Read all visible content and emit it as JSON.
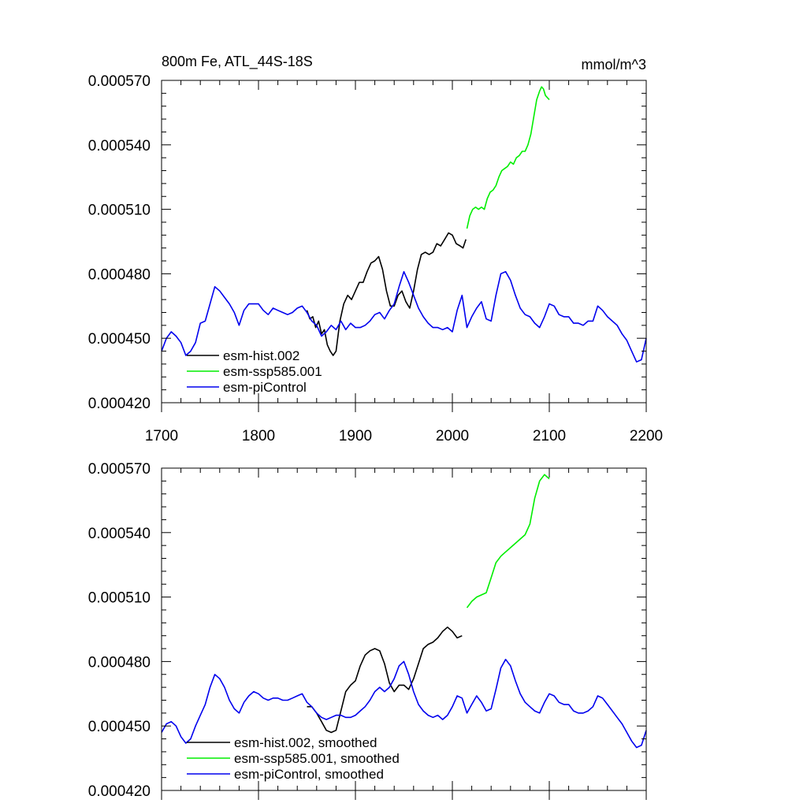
{
  "chart_data": [
    {
      "type": "line",
      "title": "800m Fe, ATL_44S-18S",
      "units": "mmol/m^3",
      "xlim": [
        1700,
        2200
      ],
      "ylim": [
        0.00042,
        0.00057
      ],
      "xticks": [
        "1700",
        "1800",
        "1900",
        "2000",
        "2100",
        "2200"
      ],
      "yticks": [
        "0.000420",
        "0.000450",
        "0.000480",
        "0.000510",
        "0.000540",
        "0.000570"
      ],
      "legend_position": "bottom-left",
      "series": [
        {
          "name": "esm-hist.002",
          "color": "#000000",
          "x": [
            1850,
            1853,
            1856,
            1859,
            1862,
            1865,
            1868,
            1871,
            1874,
            1877,
            1880,
            1884,
            1888,
            1892,
            1896,
            1900,
            1904,
            1908,
            1912,
            1916,
            1920,
            1924,
            1928,
            1932,
            1936,
            1940,
            1944,
            1948,
            1952,
            1956,
            1960,
            1964,
            1968,
            1972,
            1976,
            1980,
            1984,
            1988,
            1992,
            1996,
            2000,
            2004,
            2008,
            2011,
            2014
          ],
          "y": [
            0.000463,
            0.000459,
            0.00046,
            0.000455,
            0.000458,
            0.000452,
            0.000454,
            0.000447,
            0.000444,
            0.000442,
            0.000444,
            0.000458,
            0.000466,
            0.00047,
            0.000468,
            0.000472,
            0.000476,
            0.000476,
            0.000481,
            0.000485,
            0.000486,
            0.000488,
            0.000482,
            0.000472,
            0.000465,
            0.000465,
            0.00047,
            0.000472,
            0.000467,
            0.000464,
            0.000472,
            0.000482,
            0.000489,
            0.00049,
            0.000489,
            0.00049,
            0.000494,
            0.000493,
            0.000496,
            0.000499,
            0.000498,
            0.000494,
            0.000493,
            0.000492,
            0.000496
          ]
        },
        {
          "name": "esm-ssp585.001",
          "color": "#00ee00",
          "x": [
            2015,
            2018,
            2021,
            2024,
            2027,
            2030,
            2033,
            2036,
            2039,
            2042,
            2045,
            2048,
            2051,
            2054,
            2057,
            2060,
            2063,
            2066,
            2069,
            2072,
            2075,
            2078,
            2081,
            2084,
            2087,
            2090,
            2092,
            2094,
            2096,
            2098,
            2100
          ],
          "y": [
            0.000501,
            0.000507,
            0.00051,
            0.000511,
            0.00051,
            0.000511,
            0.00051,
            0.000515,
            0.000518,
            0.000519,
            0.000521,
            0.000525,
            0.000528,
            0.000529,
            0.00053,
            0.000532,
            0.000531,
            0.000534,
            0.000535,
            0.000537,
            0.000537,
            0.00054,
            0.000545,
            0.000553,
            0.000561,
            0.000565,
            0.000567,
            0.000566,
            0.000563,
            0.000562,
            0.000561
          ]
        },
        {
          "name": "esm-piControl",
          "color": "#0000ee",
          "x": [
            1700,
            1705,
            1710,
            1715,
            1720,
            1725,
            1730,
            1735,
            1740,
            1745,
            1750,
            1755,
            1760,
            1765,
            1770,
            1775,
            1780,
            1785,
            1790,
            1795,
            1800,
            1805,
            1810,
            1815,
            1820,
            1825,
            1830,
            1835,
            1840,
            1845,
            1850,
            1855,
            1860,
            1865,
            1870,
            1875,
            1880,
            1885,
            1890,
            1895,
            1900,
            1905,
            1910,
            1915,
            1920,
            1925,
            1930,
            1935,
            1940,
            1945,
            1950,
            1955,
            1960,
            1965,
            1970,
            1975,
            1980,
            1985,
            1990,
            1995,
            2000,
            2005,
            2010,
            2015,
            2020,
            2025,
            2030,
            2035,
            2040,
            2045,
            2050,
            2055,
            2060,
            2065,
            2070,
            2075,
            2080,
            2085,
            2090,
            2095,
            2100,
            2105,
            2110,
            2115,
            2120,
            2125,
            2130,
            2135,
            2140,
            2145,
            2150,
            2155,
            2160,
            2165,
            2170,
            2175,
            2180,
            2185,
            2190,
            2195,
            2200
          ],
          "y": [
            0.000444,
            0.00045,
            0.000453,
            0.000451,
            0.000448,
            0.000442,
            0.000444,
            0.000448,
            0.000457,
            0.000458,
            0.000466,
            0.000474,
            0.000472,
            0.000469,
            0.000466,
            0.000462,
            0.000456,
            0.000463,
            0.000466,
            0.000466,
            0.000466,
            0.000463,
            0.000461,
            0.000464,
            0.000463,
            0.000462,
            0.000461,
            0.000462,
            0.000464,
            0.000465,
            0.000462,
            0.000458,
            0.000456,
            0.000451,
            0.000453,
            0.000456,
            0.000454,
            0.000458,
            0.000454,
            0.000457,
            0.000455,
            0.000455,
            0.000456,
            0.000458,
            0.000461,
            0.000462,
            0.000459,
            0.000463,
            0.000466,
            0.000474,
            0.000481,
            0.000476,
            0.00047,
            0.000464,
            0.00046,
            0.000457,
            0.000455,
            0.000455,
            0.000454,
            0.000455,
            0.000453,
            0.000463,
            0.00047,
            0.000455,
            0.00046,
            0.000464,
            0.000467,
            0.000459,
            0.000458,
            0.00047,
            0.00048,
            0.000481,
            0.000477,
            0.00047,
            0.000464,
            0.000461,
            0.00046,
            0.000457,
            0.000455,
            0.00046,
            0.000466,
            0.000465,
            0.000461,
            0.00046,
            0.00046,
            0.000457,
            0.000457,
            0.000456,
            0.000458,
            0.000458,
            0.000465,
            0.000463,
            0.00046,
            0.000458,
            0.000456,
            0.000452,
            0.000449,
            0.000444,
            0.000439,
            0.00044,
            0.00045
          ]
        }
      ]
    },
    {
      "type": "line",
      "title": "",
      "xlim": [
        1700,
        2200
      ],
      "ylim": [
        0.00042,
        0.00057
      ],
      "yticks": [
        "0.000420",
        "0.000450",
        "0.000480",
        "0.000510",
        "0.000540",
        "0.000570"
      ],
      "legend_position": "bottom-left",
      "series": [
        {
          "name": "esm-hist.002, smoothed",
          "color": "#000000",
          "x": [
            1850,
            1855,
            1860,
            1865,
            1870,
            1875,
            1880,
            1885,
            1890,
            1895,
            1900,
            1905,
            1910,
            1915,
            1920,
            1925,
            1930,
            1935,
            1940,
            1945,
            1950,
            1955,
            1960,
            1965,
            1970,
            1975,
            1980,
            1985,
            1990,
            1995,
            2000,
            2005,
            2010
          ],
          "y": [
            0.000459,
            0.000459,
            0.000456,
            0.000452,
            0.000448,
            0.000447,
            0.000448,
            0.000457,
            0.000466,
            0.000469,
            0.000471,
            0.000478,
            0.000483,
            0.000485,
            0.000486,
            0.000485,
            0.000479,
            0.00047,
            0.000466,
            0.000469,
            0.000469,
            0.000467,
            0.000472,
            0.000479,
            0.000486,
            0.000488,
            0.000489,
            0.000491,
            0.000494,
            0.000496,
            0.000494,
            0.000491,
            0.000492
          ]
        },
        {
          "name": "esm-ssp585.001, smoothed",
          "color": "#00ee00",
          "x": [
            2015,
            2020,
            2025,
            2030,
            2035,
            2040,
            2045,
            2050,
            2055,
            2060,
            2065,
            2070,
            2075,
            2080,
            2085,
            2090,
            2095,
            2100
          ],
          "y": [
            0.000505,
            0.000508,
            0.00051,
            0.000511,
            0.000512,
            0.000519,
            0.000526,
            0.000529,
            0.000531,
            0.000533,
            0.000535,
            0.000537,
            0.000539,
            0.000544,
            0.000556,
            0.000564,
            0.000567,
            0.000565
          ]
        },
        {
          "name": "esm-piControl, smoothed",
          "color": "#0000ee",
          "x": [
            1700,
            1705,
            1710,
            1715,
            1720,
            1725,
            1730,
            1735,
            1740,
            1745,
            1750,
            1755,
            1760,
            1765,
            1770,
            1775,
            1780,
            1785,
            1790,
            1795,
            1800,
            1805,
            1810,
            1815,
            1820,
            1825,
            1830,
            1835,
            1840,
            1845,
            1850,
            1855,
            1860,
            1865,
            1870,
            1875,
            1880,
            1885,
            1890,
            1895,
            1900,
            1905,
            1910,
            1915,
            1920,
            1925,
            1930,
            1935,
            1940,
            1945,
            1950,
            1955,
            1960,
            1965,
            1970,
            1975,
            1980,
            1985,
            1990,
            1995,
            2000,
            2005,
            2010,
            2015,
            2020,
            2025,
            2030,
            2035,
            2040,
            2045,
            2050,
            2055,
            2060,
            2065,
            2070,
            2075,
            2080,
            2085,
            2090,
            2095,
            2100,
            2105,
            2110,
            2115,
            2120,
            2125,
            2130,
            2135,
            2140,
            2145,
            2150,
            2155,
            2160,
            2165,
            2170,
            2175,
            2180,
            2185,
            2190,
            2195,
            2200
          ],
          "y": [
            0.000447,
            0.000451,
            0.000452,
            0.00045,
            0.000445,
            0.000442,
            0.000444,
            0.00045,
            0.000455,
            0.00046,
            0.000468,
            0.000474,
            0.000472,
            0.000468,
            0.000462,
            0.000458,
            0.000456,
            0.000461,
            0.000464,
            0.000466,
            0.000465,
            0.000463,
            0.000462,
            0.000463,
            0.000463,
            0.000462,
            0.000462,
            0.000463,
            0.000464,
            0.000465,
            0.000461,
            0.000459,
            0.000456,
            0.000454,
            0.000453,
            0.000454,
            0.000455,
            0.000455,
            0.000454,
            0.000454,
            0.000455,
            0.000457,
            0.000459,
            0.000462,
            0.000466,
            0.000468,
            0.000466,
            0.000468,
            0.000472,
            0.000478,
            0.00048,
            0.000474,
            0.000466,
            0.00046,
            0.000457,
            0.000455,
            0.000454,
            0.000455,
            0.000453,
            0.000455,
            0.000459,
            0.000464,
            0.000463,
            0.000456,
            0.00046,
            0.000464,
            0.000461,
            0.000457,
            0.000458,
            0.000467,
            0.000477,
            0.000481,
            0.000478,
            0.000471,
            0.000465,
            0.000461,
            0.000459,
            0.000457,
            0.000456,
            0.000461,
            0.000465,
            0.000464,
            0.000461,
            0.00046,
            0.00046,
            0.000457,
            0.000456,
            0.000456,
            0.000457,
            0.000459,
            0.000464,
            0.000463,
            0.00046,
            0.000457,
            0.000454,
            0.000451,
            0.000447,
            0.000443,
            0.00044,
            0.000441,
            0.000448
          ]
        }
      ]
    }
  ]
}
